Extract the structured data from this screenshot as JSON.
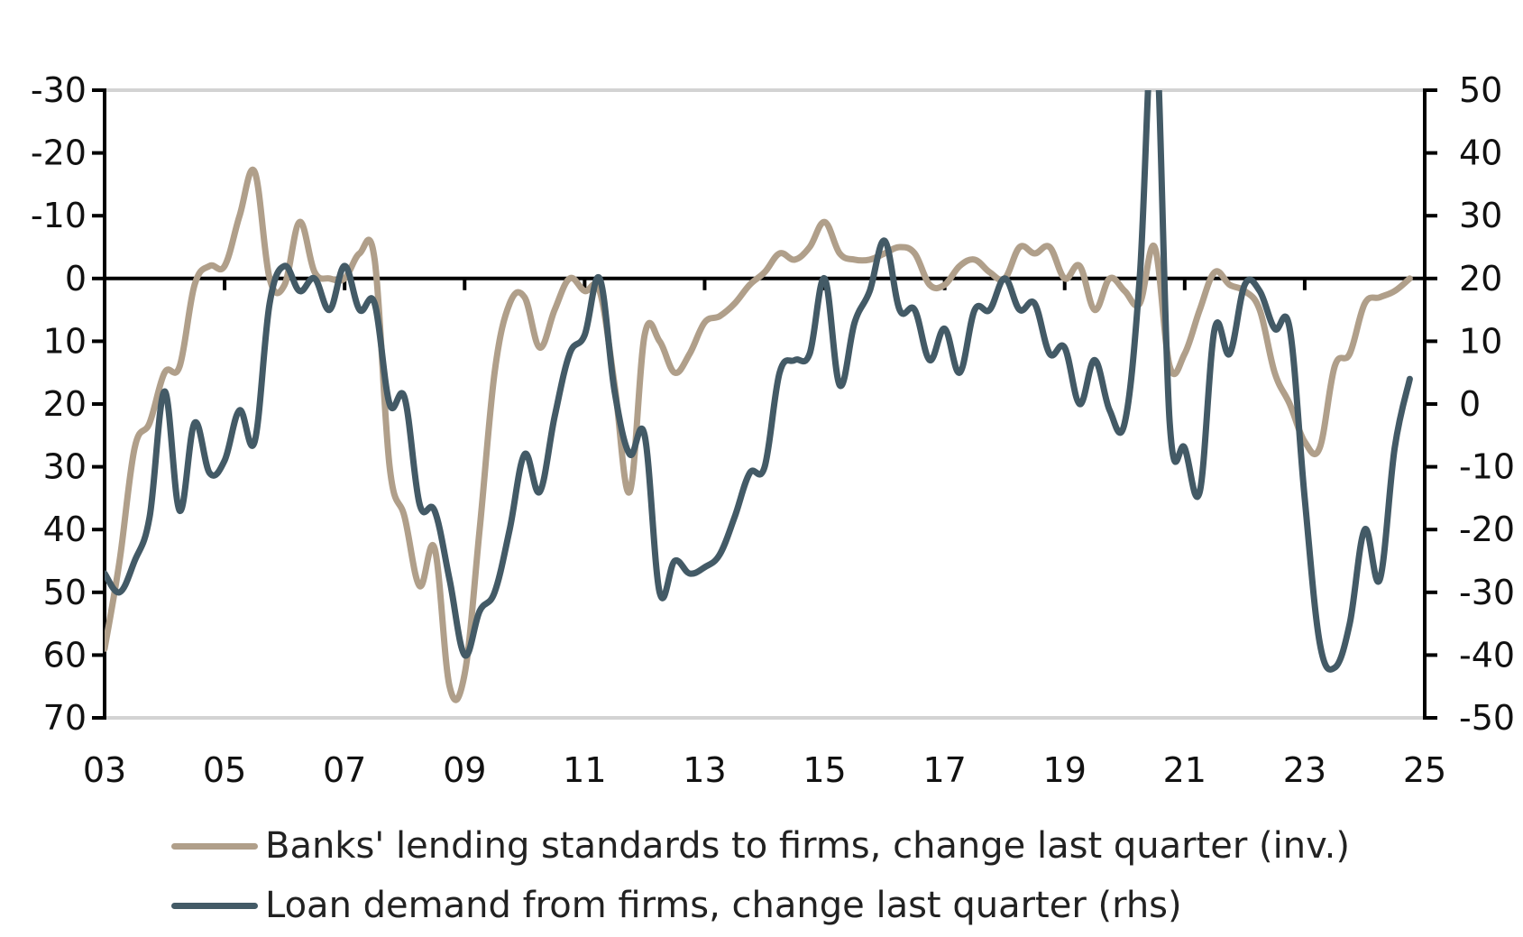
{
  "chart_data": {
    "type": "line",
    "x_ticks": [
      "03",
      "05",
      "07",
      "09",
      "11",
      "13",
      "15",
      "17",
      "19",
      "21",
      "23",
      "25"
    ],
    "y_left": {
      "inverted": true,
      "range": [
        -30,
        70
      ],
      "ticks": [
        "-30",
        "-20",
        "-10",
        "0",
        "10",
        "20",
        "30",
        "40",
        "50",
        "60",
        "70"
      ]
    },
    "y_right": {
      "range": [
        -50,
        50
      ],
      "ticks": [
        "50",
        "40",
        "30",
        "20",
        "10",
        "0",
        "-10",
        "-20",
        "-30",
        "-40",
        "-50"
      ]
    },
    "grid": "horizontal top line only",
    "legend_position": "bottom",
    "series": [
      {
        "name": "Banks' lending standards to firms, change last quarter (inv.)",
        "axis": "left",
        "color": "#b09f8a",
        "points": [
          [
            2003.0,
            59
          ],
          [
            2003.25,
            45
          ],
          [
            2003.5,
            27
          ],
          [
            2003.75,
            23
          ],
          [
            2004.0,
            15
          ],
          [
            2004.25,
            14
          ],
          [
            2004.5,
            1
          ],
          [
            2004.75,
            -2
          ],
          [
            2005.0,
            -2
          ],
          [
            2005.25,
            -10
          ],
          [
            2005.5,
            -17
          ],
          [
            2005.75,
            0
          ],
          [
            2006.0,
            1
          ],
          [
            2006.25,
            -9
          ],
          [
            2006.5,
            -1
          ],
          [
            2006.75,
            0
          ],
          [
            2007.0,
            0
          ],
          [
            2007.25,
            -4
          ],
          [
            2007.5,
            -3
          ],
          [
            2007.75,
            30
          ],
          [
            2008.0,
            38
          ],
          [
            2008.25,
            49
          ],
          [
            2008.5,
            43
          ],
          [
            2008.75,
            65
          ],
          [
            2009.0,
            63
          ],
          [
            2009.25,
            40
          ],
          [
            2009.5,
            15
          ],
          [
            2009.75,
            4
          ],
          [
            2010.0,
            3
          ],
          [
            2010.25,
            11
          ],
          [
            2010.5,
            5
          ],
          [
            2010.75,
            0
          ],
          [
            2011.0,
            2
          ],
          [
            2011.25,
            2
          ],
          [
            2011.5,
            17
          ],
          [
            2011.75,
            34
          ],
          [
            2012.0,
            9
          ],
          [
            2012.25,
            10
          ],
          [
            2012.5,
            15
          ],
          [
            2012.75,
            12
          ],
          [
            2013.0,
            7
          ],
          [
            2013.25,
            6
          ],
          [
            2013.5,
            4
          ],
          [
            2013.75,
            1
          ],
          [
            2014.0,
            -1
          ],
          [
            2014.25,
            -4
          ],
          [
            2014.5,
            -3
          ],
          [
            2014.75,
            -5
          ],
          [
            2015.0,
            -9
          ],
          [
            2015.25,
            -4
          ],
          [
            2015.5,
            -3
          ],
          [
            2015.75,
            -3
          ],
          [
            2016.0,
            -4
          ],
          [
            2016.25,
            -5
          ],
          [
            2016.5,
            -4
          ],
          [
            2016.75,
            1
          ],
          [
            2017.0,
            1
          ],
          [
            2017.25,
            -2
          ],
          [
            2017.5,
            -3
          ],
          [
            2017.75,
            -1
          ],
          [
            2018.0,
            0
          ],
          [
            2018.25,
            -5
          ],
          [
            2018.5,
            -4
          ],
          [
            2018.75,
            -5
          ],
          [
            2019.0,
            0
          ],
          [
            2019.25,
            -2
          ],
          [
            2019.5,
            5
          ],
          [
            2019.75,
            0
          ],
          [
            2020.0,
            2
          ],
          [
            2020.25,
            4
          ],
          [
            2020.5,
            -5
          ],
          [
            2020.75,
            14
          ],
          [
            2021.0,
            12
          ],
          [
            2021.25,
            5
          ],
          [
            2021.5,
            -1
          ],
          [
            2021.75,
            1
          ],
          [
            2022.0,
            2
          ],
          [
            2022.25,
            5
          ],
          [
            2022.5,
            15
          ],
          [
            2022.75,
            20
          ],
          [
            2023.0,
            26
          ],
          [
            2023.25,
            27
          ],
          [
            2023.5,
            14
          ],
          [
            2023.75,
            12
          ],
          [
            2024.0,
            4
          ],
          [
            2024.25,
            3
          ],
          [
            2024.5,
            2
          ],
          [
            2024.75,
            0
          ]
        ]
      },
      {
        "name": "Loan demand from firms, change last quarter (rhs)",
        "axis": "right",
        "color": "#435a66",
        "points": [
          [
            2003.0,
            -27
          ],
          [
            2003.25,
            -30
          ],
          [
            2003.5,
            -25
          ],
          [
            2003.75,
            -18
          ],
          [
            2004.0,
            2
          ],
          [
            2004.25,
            -17
          ],
          [
            2004.5,
            -3
          ],
          [
            2004.75,
            -11
          ],
          [
            2005.0,
            -9
          ],
          [
            2005.25,
            -1
          ],
          [
            2005.5,
            -6
          ],
          [
            2005.75,
            16
          ],
          [
            2006.0,
            22
          ],
          [
            2006.25,
            18
          ],
          [
            2006.5,
            20
          ],
          [
            2006.75,
            15
          ],
          [
            2007.0,
            22
          ],
          [
            2007.25,
            15
          ],
          [
            2007.5,
            16
          ],
          [
            2007.75,
            0
          ],
          [
            2008.0,
            1
          ],
          [
            2008.25,
            -16
          ],
          [
            2008.5,
            -17
          ],
          [
            2008.75,
            -28
          ],
          [
            2009.0,
            -40
          ],
          [
            2009.25,
            -33
          ],
          [
            2009.5,
            -30
          ],
          [
            2009.75,
            -20
          ],
          [
            2010.0,
            -8
          ],
          [
            2010.25,
            -14
          ],
          [
            2010.5,
            -2
          ],
          [
            2010.75,
            8
          ],
          [
            2011.0,
            11
          ],
          [
            2011.25,
            20
          ],
          [
            2011.5,
            2
          ],
          [
            2011.75,
            -8
          ],
          [
            2012.0,
            -5
          ],
          [
            2012.25,
            -30
          ],
          [
            2012.5,
            -25
          ],
          [
            2012.75,
            -27
          ],
          [
            2013.0,
            -26
          ],
          [
            2013.25,
            -24
          ],
          [
            2013.5,
            -18
          ],
          [
            2013.75,
            -11
          ],
          [
            2014.0,
            -10
          ],
          [
            2014.25,
            5
          ],
          [
            2014.5,
            7
          ],
          [
            2014.75,
            8
          ],
          [
            2015.0,
            20
          ],
          [
            2015.25,
            3
          ],
          [
            2015.5,
            13
          ],
          [
            2015.75,
            18
          ],
          [
            2016.0,
            26
          ],
          [
            2016.25,
            15
          ],
          [
            2016.5,
            15
          ],
          [
            2016.75,
            7
          ],
          [
            2017.0,
            12
          ],
          [
            2017.25,
            5
          ],
          [
            2017.5,
            15
          ],
          [
            2017.75,
            15
          ],
          [
            2018.0,
            20
          ],
          [
            2018.25,
            15
          ],
          [
            2018.5,
            16
          ],
          [
            2018.75,
            8
          ],
          [
            2019.0,
            9
          ],
          [
            2019.25,
            0
          ],
          [
            2019.5,
            7
          ],
          [
            2019.75,
            -1
          ],
          [
            2020.0,
            -3
          ],
          [
            2020.25,
            20
          ],
          [
            2020.5,
            62
          ],
          [
            2020.75,
            -3
          ],
          [
            2021.0,
            -7
          ],
          [
            2021.25,
            -14
          ],
          [
            2021.5,
            12
          ],
          [
            2021.75,
            8
          ],
          [
            2022.0,
            19
          ],
          [
            2022.25,
            18
          ],
          [
            2022.5,
            12
          ],
          [
            2022.75,
            12
          ],
          [
            2023.0,
            -15
          ],
          [
            2023.25,
            -38
          ],
          [
            2023.5,
            -42
          ],
          [
            2023.75,
            -35
          ],
          [
            2024.0,
            -20
          ],
          [
            2024.25,
            -28
          ],
          [
            2024.5,
            -7
          ],
          [
            2024.75,
            4
          ]
        ]
      }
    ]
  }
}
